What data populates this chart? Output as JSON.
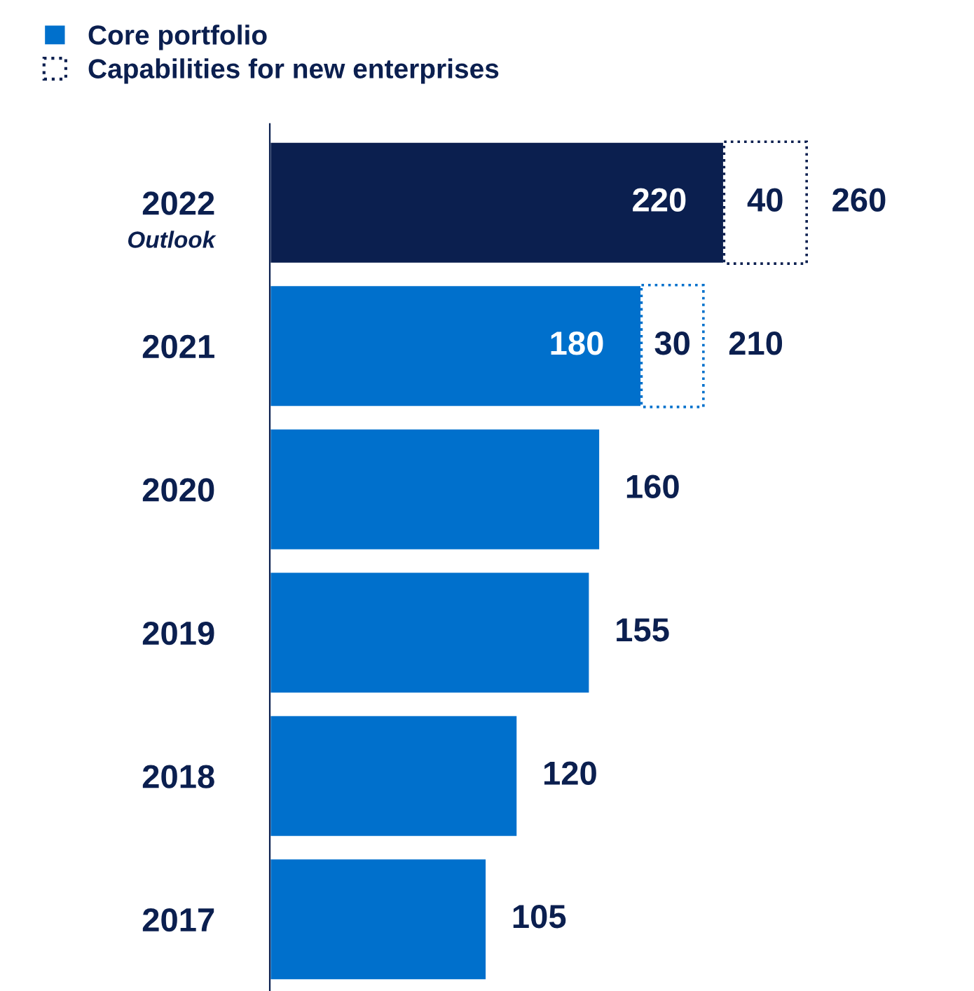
{
  "chart_data": {
    "type": "bar",
    "orientation": "horizontal",
    "stacked": true,
    "categories": [
      "2022",
      "2021",
      "2020",
      "2019",
      "2018",
      "2017"
    ],
    "annotations": [
      "Outlook"
    ],
    "series": [
      {
        "name": "Core portfolio",
        "color": "#0070cc",
        "colors": [
          "#0b1f4f",
          "#0070cc",
          "#0070cc",
          "#0070cc",
          "#0070cc",
          "#0070cc"
        ],
        "values": [
          220,
          180,
          160,
          155,
          120,
          105
        ],
        "value_labels": [
          "220",
          "180",
          null,
          null,
          null,
          null
        ]
      },
      {
        "name": "Capabilities for new enterprises",
        "color": "#0b1f4f",
        "colors": [
          "#0b1f4f",
          "#0070cc",
          null,
          null,
          null,
          null
        ],
        "line_style": "dotted",
        "values": [
          40,
          30,
          null,
          null,
          null,
          null
        ],
        "value_labels": [
          "40",
          "30",
          null,
          null,
          null,
          null
        ]
      }
    ],
    "totals": [
      "260",
      "210",
      "160",
      "155",
      "120",
      "105"
    ],
    "tick_labels": "y",
    "legend": "top left",
    "grid": false
  }
}
